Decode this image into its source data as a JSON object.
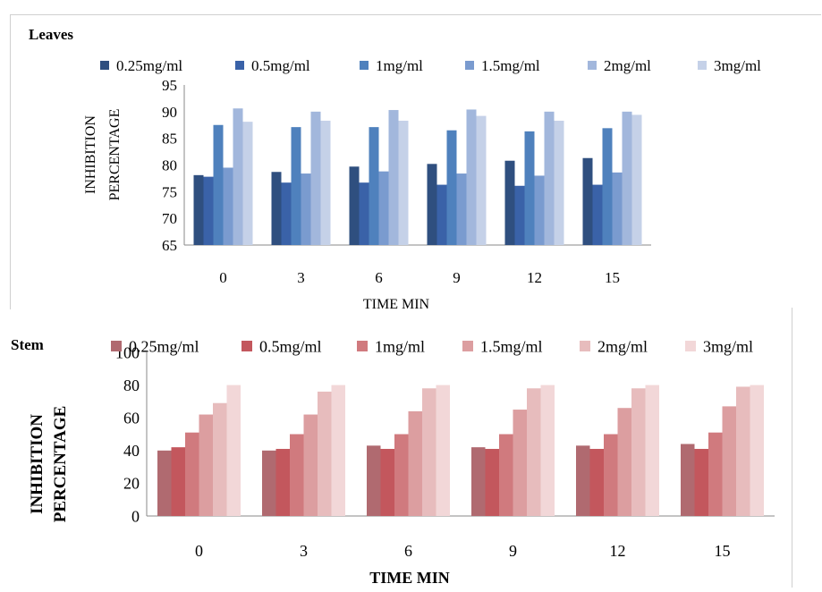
{
  "charts": [
    {
      "panel_title": "Leaves",
      "colors": [
        "#2f4f7f",
        "#3a62a8",
        "#4f81bd",
        "#7a9bcf",
        "#a2b7dc",
        "#c5d1e8"
      ],
      "chart_data": {
        "type": "bar",
        "title": "Leaves",
        "xlabel": "TIME MIN",
        "ylabel_lines": [
          "INHIBITION",
          "PERCENTAGE"
        ],
        "categories": [
          "0",
          "3",
          "6",
          "9",
          "12",
          "15"
        ],
        "ylim": [
          65,
          95
        ],
        "yticks": [
          65,
          70,
          75,
          80,
          85,
          90,
          95
        ],
        "grid": false,
        "legend_position": "top",
        "series": [
          {
            "name": "0.25mg/ml",
            "values": [
              78.1,
              78.7,
              79.7,
              80.2,
              80.8,
              81.3
            ]
          },
          {
            "name": "0.5mg/ml",
            "values": [
              77.8,
              76.7,
              76.7,
              76.3,
              76.1,
              76.3
            ]
          },
          {
            "name": "1mg/ml",
            "values": [
              87.5,
              87.1,
              87.1,
              86.5,
              86.3,
              86.9
            ]
          },
          {
            "name": "1.5mg/ml",
            "values": [
              79.5,
              78.4,
              78.8,
              78.4,
              78.0,
              78.6
            ]
          },
          {
            "name": "2mg/ml",
            "values": [
              90.6,
              90.0,
              90.3,
              90.4,
              90.0,
              90.0
            ]
          },
          {
            "name": "3mg/ml",
            "values": [
              88.1,
              88.3,
              88.3,
              89.2,
              88.3,
              89.4
            ]
          }
        ]
      }
    },
    {
      "panel_title": "Stem",
      "colors": [
        "#b06a70",
        "#c3575d",
        "#d07a7e",
        "#dc9ea0",
        "#e7bcbd",
        "#f2d7d8"
      ],
      "chart_data": {
        "type": "bar",
        "title": "Stem",
        "xlabel": "TIME MIN",
        "ylabel_lines": [
          "INHIBITION",
          "PERCENTAGE"
        ],
        "categories": [
          "0",
          "3",
          "6",
          "9",
          "12",
          "15"
        ],
        "ylim": [
          0,
          100
        ],
        "yticks": [
          0,
          20,
          40,
          60,
          80,
          100
        ],
        "grid": false,
        "legend_position": "top",
        "series": [
          {
            "name": "0.25mg/ml",
            "values": [
              40,
              40,
              43,
              42,
              43,
              44
            ]
          },
          {
            "name": "0.5mg/ml",
            "values": [
              42,
              41,
              41,
              41,
              41,
              41
            ]
          },
          {
            "name": "1mg/ml",
            "values": [
              51,
              50,
              50,
              50,
              50,
              51
            ]
          },
          {
            "name": "1.5mg/ml",
            "values": [
              62,
              62,
              64,
              65,
              66,
              67
            ]
          },
          {
            "name": "2mg/ml",
            "values": [
              69,
              76,
              78,
              78,
              78,
              79
            ]
          },
          {
            "name": "3mg/ml",
            "values": [
              80,
              80,
              80,
              80,
              80,
              80
            ]
          }
        ]
      }
    }
  ]
}
